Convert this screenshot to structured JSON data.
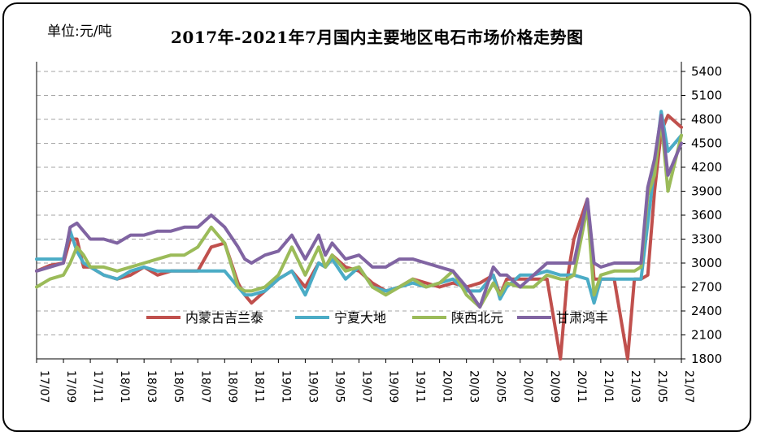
{
  "unit_label": "单位:元/吨",
  "chart_data": {
    "type": "line",
    "title": "2017年-2021年7月国内主要地区电石市场价格走势图",
    "xlabel": "",
    "ylabel": "",
    "ylim": [
      1800,
      5400
    ],
    "yticks": [
      1800,
      2100,
      2400,
      2700,
      3000,
      3300,
      3600,
      3900,
      4200,
      4500,
      4800,
      5100,
      5400
    ],
    "y_axis_side": "right",
    "grid": true,
    "legend_position": "lower-middle",
    "xrange": [
      0,
      48
    ],
    "xticks": [
      "17/07",
      "17/09",
      "17/11",
      "18/01",
      "18/03",
      "18/05",
      "18/07",
      "18/09",
      "18/11",
      "19/01",
      "19/03",
      "19/05",
      "19/07",
      "19/09",
      "19/11",
      "20/01",
      "20/03",
      "20/05",
      "20/07",
      "20/09",
      "20/11",
      "21/01",
      "21/03",
      "21/05",
      "21/07"
    ],
    "series": [
      {
        "name": "内蒙古吉兰泰",
        "color": "#c0504d",
        "x": [
          0,
          1,
          2,
          2.5,
          3,
          3.5,
          4,
          5,
          6,
          7,
          8,
          9,
          10,
          11,
          12,
          13,
          14,
          15,
          15.5,
          16,
          17,
          18,
          19,
          20,
          21,
          21.5,
          22,
          23,
          24,
          25,
          26,
          27,
          28,
          29,
          30,
          31,
          32,
          33,
          34,
          34.5,
          35,
          36,
          37,
          38,
          39,
          39.5,
          40,
          41,
          41.5,
          42,
          43,
          44,
          44.5,
          45,
          45.5,
          46,
          46.5,
          47,
          48
        ],
        "y": [
          2900,
          2970,
          3000,
          3300,
          3300,
          2950,
          2950,
          2850,
          2800,
          2850,
          2950,
          2850,
          2900,
          2900,
          2900,
          3200,
          3250,
          2750,
          2600,
          2500,
          2650,
          2800,
          2900,
          2700,
          3000,
          2950,
          3100,
          2950,
          2900,
          2750,
          2650,
          2700,
          2800,
          2750,
          2700,
          2750,
          2700,
          2750,
          2850,
          2600,
          2800,
          2800,
          2800,
          2800,
          1800,
          2800,
          3300,
          3800,
          2800,
          2800,
          2800,
          1800,
          2800,
          2800,
          2850,
          3900,
          4650,
          4850,
          4700
        ]
      },
      {
        "name": "宁夏大地",
        "color": "#4bacc6",
        "x": [
          0,
          1,
          2,
          2.5,
          3,
          3.5,
          4,
          5,
          6,
          7,
          8,
          9,
          10,
          11,
          12,
          13,
          14,
          15,
          15.5,
          16,
          17,
          18,
          19,
          20,
          21,
          21.5,
          22,
          23,
          24,
          25,
          26,
          27,
          28,
          29,
          30,
          31,
          32,
          33,
          34,
          34.5,
          35,
          36,
          37,
          38,
          39,
          39.5,
          40,
          41,
          41.5,
          42,
          43,
          44,
          44.5,
          45,
          45.5,
          46,
          46.5,
          47,
          48
        ],
        "y": [
          3050,
          3050,
          3050,
          3400,
          3150,
          3000,
          2950,
          2850,
          2800,
          2900,
          2950,
          2900,
          2900,
          2900,
          2900,
          2900,
          2900,
          2700,
          2600,
          2600,
          2650,
          2800,
          2900,
          2600,
          3000,
          2950,
          3050,
          2800,
          2950,
          2700,
          2650,
          2700,
          2750,
          2700,
          2750,
          2800,
          2650,
          2650,
          2850,
          2550,
          2700,
          2850,
          2850,
          2900,
          2850,
          2850,
          2850,
          2800,
          2500,
          2800,
          2800,
          2800,
          2800,
          2800,
          3500,
          4200,
          4900,
          4400,
          4600
        ]
      },
      {
        "name": "陕西北元",
        "color": "#9bbb59",
        "x": [
          0,
          1,
          2,
          2.5,
          3,
          3.5,
          4,
          5,
          6,
          7,
          8,
          9,
          10,
          11,
          12,
          13,
          14,
          15,
          15.5,
          16,
          17,
          18,
          19,
          20,
          21,
          21.5,
          22,
          23,
          24,
          25,
          26,
          27,
          28,
          29,
          30,
          31,
          32,
          33,
          34,
          34.5,
          35,
          36,
          37,
          38,
          39,
          39.5,
          40,
          41,
          41.5,
          42,
          43,
          44,
          44.5,
          45,
          45.5,
          46,
          46.5,
          47,
          48
        ],
        "y": [
          2700,
          2800,
          2850,
          3000,
          3200,
          3100,
          2950,
          2950,
          2900,
          2950,
          3000,
          3050,
          3100,
          3100,
          3200,
          3450,
          3250,
          2700,
          2650,
          2650,
          2700,
          2850,
          3200,
          2850,
          3200,
          2950,
          3100,
          2900,
          2950,
          2700,
          2600,
          2700,
          2800,
          2700,
          2750,
          2900,
          2600,
          2450,
          2750,
          2600,
          2750,
          2700,
          2700,
          2850,
          2800,
          2800,
          2850,
          3700,
          2600,
          2850,
          2900,
          2900,
          2900,
          2950,
          3850,
          4100,
          4800,
          3900,
          4600
        ]
      },
      {
        "name": "甘肃鸿丰",
        "color": "#8064a2",
        "x": [
          0,
          1,
          2,
          2.5,
          3,
          3.5,
          4,
          5,
          6,
          7,
          8,
          9,
          10,
          11,
          12,
          13,
          14,
          15,
          15.5,
          16,
          17,
          18,
          19,
          20,
          21,
          21.5,
          22,
          23,
          24,
          25,
          26,
          27,
          28,
          29,
          30,
          31,
          32,
          33,
          34,
          34.5,
          35,
          36,
          37,
          38,
          39,
          39.5,
          40,
          41,
          41.5,
          42,
          43,
          44,
          44.5,
          45,
          45.5,
          46,
          46.5,
          47,
          48
        ],
        "y": [
          2900,
          2950,
          3000,
          3450,
          3500,
          3400,
          3300,
          3300,
          3250,
          3350,
          3350,
          3400,
          3400,
          3450,
          3450,
          3600,
          3450,
          3200,
          3050,
          3000,
          3100,
          3150,
          3350,
          3050,
          3350,
          3100,
          3250,
          3050,
          3100,
          2950,
          2950,
          3050,
          3050,
          3000,
          2950,
          2900,
          2700,
          2450,
          2950,
          2850,
          2850,
          2700,
          2850,
          3000,
          3000,
          3000,
          3000,
          3800,
          3000,
          2950,
          3000,
          3000,
          3000,
          3000,
          3950,
          4300,
          4850,
          4100,
          4500
        ]
      }
    ]
  }
}
